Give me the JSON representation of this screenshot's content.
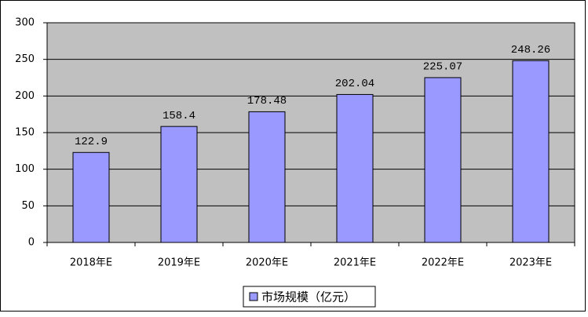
{
  "chart_data": {
    "type": "bar",
    "categories": [
      "2018年E",
      "2019年E",
      "2020年E",
      "2021年E",
      "2022年E",
      "2023年E"
    ],
    "series": [
      {
        "name": "市场规模（亿元）",
        "color": "#9999ff",
        "values": [
          122.9,
          158.4,
          178.48,
          202.04,
          225.07,
          248.26
        ]
      }
    ],
    "ylim": [
      0,
      300
    ],
    "yticks": [
      0,
      50,
      100,
      150,
      200,
      250,
      300
    ],
    "grid": true,
    "plot_background": "#c0c0c0",
    "legend": "bottom"
  }
}
